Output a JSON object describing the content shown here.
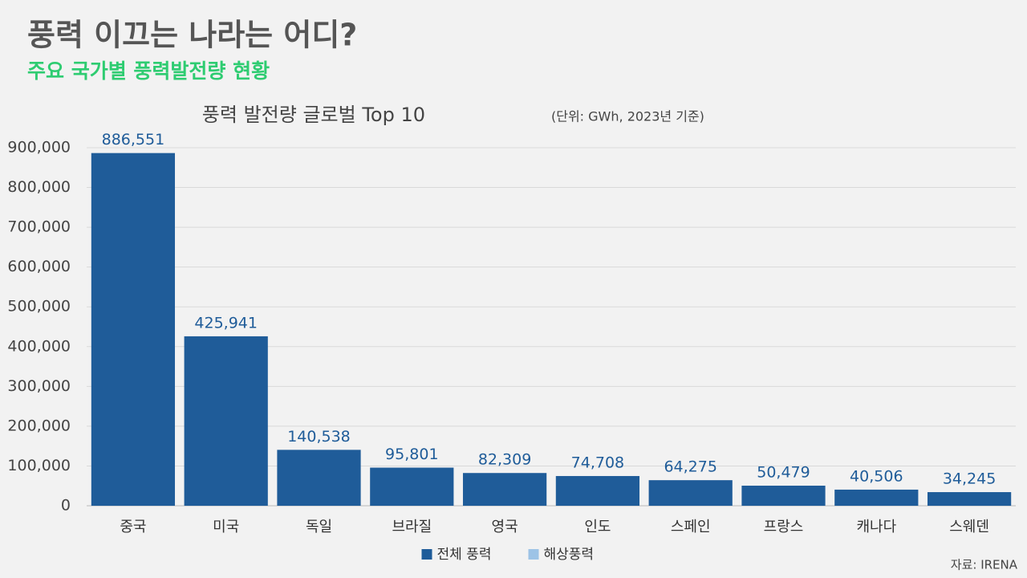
{
  "title": "풍력 이끄는 나라는 어디?",
  "subtitle": "주요 국가별 풍력발전량 현황",
  "source": "자료: IRENA",
  "chart_data": {
    "type": "bar",
    "title": "풍력 발전량 글로벌 Top 10",
    "unit_note": "(단위: GWh, 2023년 기준)",
    "categories": [
      "중국",
      "미국",
      "독일",
      "브라질",
      "영국",
      "인도",
      "스페인",
      "프랑스",
      "캐나다",
      "스웨덴"
    ],
    "series": [
      {
        "name": "전체 풍력",
        "color": "#1f5c99",
        "values": [
          886551,
          425941,
          140538,
          95801,
          82309,
          74708,
          64275,
          50479,
          40506,
          34245
        ],
        "value_labels": [
          "886,551",
          "425,941",
          "140,538",
          "95,801",
          "82,309",
          "74,708",
          "64,275",
          "50,479",
          "40,506",
          "34,245"
        ]
      },
      {
        "name": "해상풍력",
        "color": "#9dc3e6",
        "values": [
          null,
          null,
          null,
          null,
          null,
          null,
          null,
          null,
          null,
          null
        ]
      }
    ],
    "ylim": [
      0,
      900000
    ],
    "yticks": [
      0,
      {
        "value": 100000,
        "label": "100,000"
      },
      {
        "value": 200000,
        "label": "200,000"
      },
      {
        "value": 300000,
        "label": "300,000"
      },
      {
        "value": 400000,
        "label": "400,000"
      },
      {
        "value": 500000,
        "label": "500,000"
      },
      {
        "value": 600000,
        "label": "600,000"
      },
      {
        "value": 700000,
        "label": "700,000"
      },
      {
        "value": 800000,
        "label": "800,000"
      },
      {
        "value": 900000,
        "label": "900,000"
      }
    ],
    "grid": true,
    "legend": "bottom"
  }
}
